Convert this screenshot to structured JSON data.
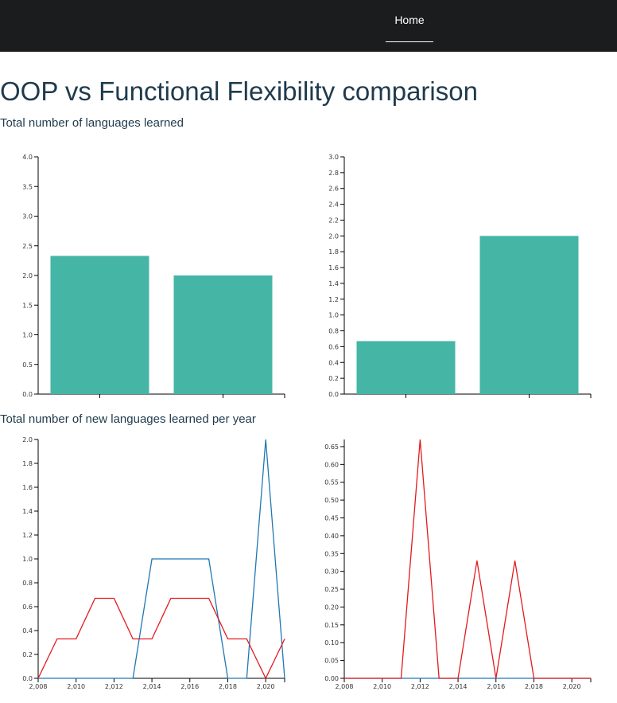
{
  "nav": {
    "home_label": "Home"
  },
  "page": {
    "title": "OOP vs Functional Flexibility comparison",
    "section1_title": "Total number of languages learned",
    "section2_title": "Total number of new languages learned per year"
  },
  "colors": {
    "bar": "#45b5a6",
    "series_blue": "#1f77b4",
    "series_red": "#e31a1c",
    "navbar": "#1b1c1d"
  },
  "chart_data": [
    {
      "type": "bar",
      "categories": [
        "",
        ""
      ],
      "values": [
        2.33,
        2.0
      ],
      "ylim": [
        0,
        4.0
      ],
      "yticks": [
        0,
        0.5,
        1.0,
        1.5,
        2.0,
        2.5,
        3.0,
        3.5,
        4.0
      ],
      "ytick_labels": [
        "0.0",
        "0.5",
        "1.0",
        "1.5",
        "2.0",
        "2.5",
        "3.0",
        "3.5",
        "4.0"
      ]
    },
    {
      "type": "bar",
      "categories": [
        "",
        ""
      ],
      "values": [
        0.67,
        2.0
      ],
      "ylim": [
        0,
        3.0
      ],
      "yticks": [
        0,
        0.2,
        0.4,
        0.6,
        0.8,
        1.0,
        1.2,
        1.4,
        1.6,
        1.8,
        2.0,
        2.2,
        2.4,
        2.6,
        2.8,
        3.0
      ],
      "ytick_labels": [
        "0.0",
        "0.2",
        "0.4",
        "0.6",
        "0.8",
        "1.0",
        "1.2",
        "1.4",
        "1.6",
        "1.8",
        "2.0",
        "2.2",
        "2.4",
        "2.6",
        "2.8",
        "3.0"
      ]
    },
    {
      "type": "line",
      "xlim": [
        2008,
        2021
      ],
      "ylim": [
        0,
        2.0
      ],
      "xticks": [
        2008,
        2010,
        2012,
        2014,
        2016,
        2018,
        2020
      ],
      "xtick_labels": [
        "2,008",
        "2,010",
        "2,012",
        "2,014",
        "2,016",
        "2,018",
        "2,020"
      ],
      "yticks": [
        0,
        0.2,
        0.4,
        0.6,
        0.8,
        1.0,
        1.2,
        1.4,
        1.6,
        1.8,
        2.0
      ],
      "ytick_labels": [
        "0.0",
        "0.2",
        "0.4",
        "0.6",
        "0.8",
        "1.0",
        "1.2",
        "1.4",
        "1.6",
        "1.8",
        "2.0"
      ],
      "series": [
        {
          "color": "#1f77b4",
          "x": [
            2008,
            2009,
            2010,
            2011,
            2012,
            2013,
            2014,
            2015,
            2016,
            2017,
            2018,
            2019,
            2020,
            2021
          ],
          "y": [
            0,
            0,
            0,
            0,
            0,
            0,
            1,
            1,
            1,
            1,
            0,
            0,
            2,
            0
          ]
        },
        {
          "color": "#e31a1c",
          "x": [
            2008,
            2009,
            2010,
            2011,
            2012,
            2013,
            2014,
            2015,
            2016,
            2017,
            2018,
            2019,
            2020,
            2021
          ],
          "y": [
            0,
            0.33,
            0.33,
            0.67,
            0.67,
            0.33,
            0.33,
            0.67,
            0.67,
            0.67,
            0.33,
            0.33,
            0,
            0.33
          ]
        }
      ]
    },
    {
      "type": "line",
      "xlim": [
        2008,
        2021
      ],
      "ylim": [
        0,
        0.67
      ],
      "xticks": [
        2008,
        2010,
        2012,
        2014,
        2016,
        2018,
        2020
      ],
      "xtick_labels": [
        "2,008",
        "2,010",
        "2,012",
        "2,014",
        "2,016",
        "2,018",
        "2,020"
      ],
      "yticks": [
        0,
        0.05,
        0.1,
        0.15,
        0.2,
        0.25,
        0.3,
        0.35,
        0.4,
        0.45,
        0.5,
        0.55,
        0.6,
        0.65
      ],
      "ytick_labels": [
        "0.00",
        "0.05",
        "0.10",
        "0.15",
        "0.20",
        "0.25",
        "0.30",
        "0.35",
        "0.40",
        "0.45",
        "0.50",
        "0.55",
        "0.60",
        "0.65"
      ],
      "series": [
        {
          "color": "#1f77b4",
          "x": [
            2008,
            2009,
            2010,
            2011,
            2012,
            2013,
            2014,
            2015,
            2016,
            2017,
            2018,
            2019,
            2020,
            2021
          ],
          "y": [
            0,
            0,
            0,
            0,
            0,
            0,
            0,
            0,
            0,
            0,
            0,
            0,
            0,
            0
          ]
        },
        {
          "color": "#e31a1c",
          "x": [
            2008,
            2009,
            2010,
            2011,
            2012,
            2013,
            2014,
            2015,
            2016,
            2017,
            2018,
            2019,
            2020,
            2021
          ],
          "y": [
            0,
            0,
            0,
            0,
            0.67,
            0,
            0,
            0.33,
            0,
            0.33,
            0,
            0,
            0,
            0
          ]
        }
      ]
    }
  ]
}
